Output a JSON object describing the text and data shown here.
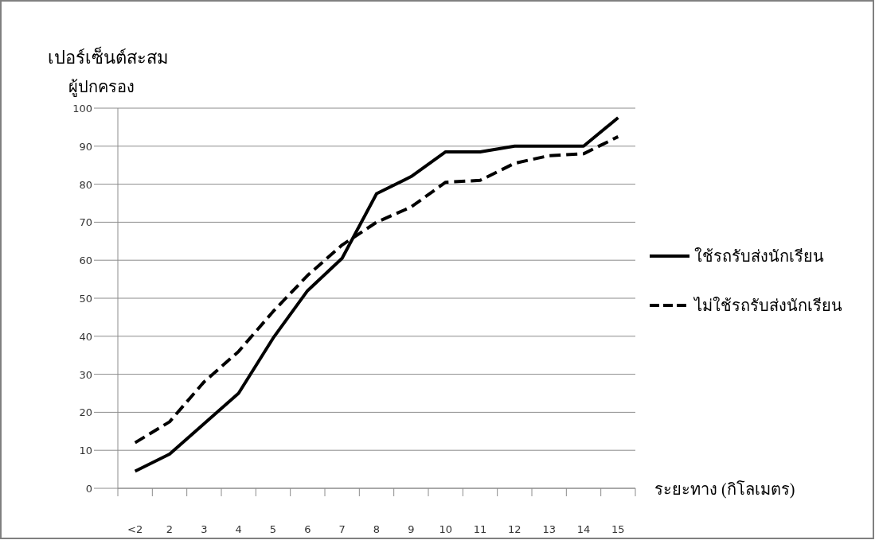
{
  "chart_data": {
    "type": "line",
    "title": "เปอร์เซ็นต์สะสม",
    "ylabel": "ผู้ปกครอง",
    "xlabel": "ระยะทาง (กิโลเมตร)",
    "categories": [
      "<2",
      "2",
      "3",
      "4",
      "5",
      "6",
      "7",
      "8",
      "9",
      "10",
      "11",
      "12",
      "13",
      "14",
      "15"
    ],
    "series": [
      {
        "name": "ใช้รถรับส่งนักเรียน",
        "color": "#000000",
        "line_style": "solid",
        "values": [
          4.5,
          9,
          17,
          25,
          39.5,
          52,
          60.5,
          77.5,
          82,
          88.5,
          88.5,
          90,
          90,
          90,
          97.5
        ]
      },
      {
        "name": "ไม่ใช้รถรับส่งนักเรียน",
        "color": "#000000",
        "line_style": "dashed",
        "values": [
          12,
          17.5,
          28,
          36,
          46.5,
          56,
          64,
          70,
          74,
          80.5,
          81,
          85.5,
          87.5,
          88,
          92.5
        ]
      }
    ],
    "ylim": [
      0,
      100
    ],
    "yticks": [
      0,
      10,
      20,
      30,
      40,
      50,
      60,
      70,
      80,
      90,
      100
    ],
    "grid": "y",
    "legend": "right",
    "marker": "none"
  }
}
